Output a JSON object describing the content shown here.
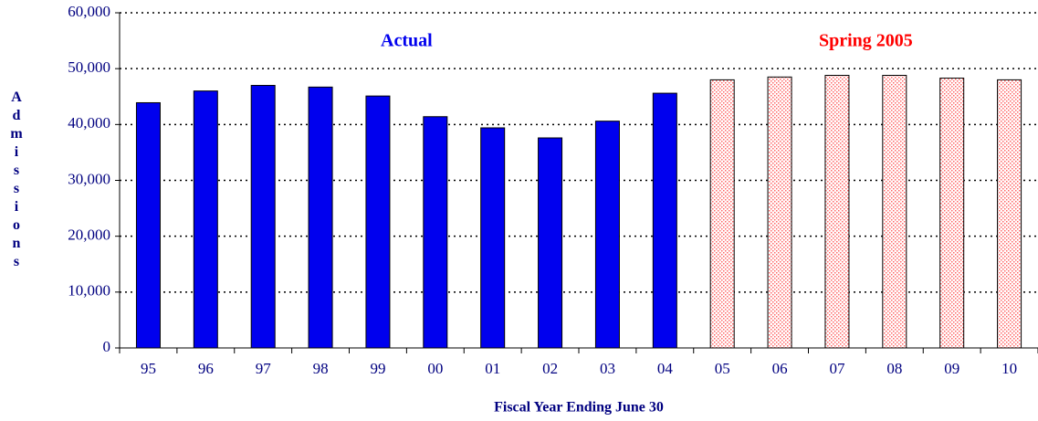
{
  "chart_data": {
    "type": "bar",
    "x_label": "Fiscal Year Ending June 30",
    "y_label": "Admissions",
    "categories": [
      "95",
      "96",
      "97",
      "98",
      "99",
      "00",
      "01",
      "02",
      "03",
      "04",
      "05",
      "06",
      "07",
      "08",
      "09",
      "10"
    ],
    "series": [
      {
        "name": "Actual",
        "color": "#0000ee",
        "pattern": "solid",
        "values": [
          43900,
          46000,
          47000,
          46700,
          45100,
          41400,
          39400,
          37600,
          40600,
          45600,
          null,
          null,
          null,
          null,
          null,
          null
        ]
      },
      {
        "name": "Spring 2005",
        "color": "#ff0000",
        "pattern": "dots",
        "values": [
          null,
          null,
          null,
          null,
          null,
          null,
          null,
          null,
          null,
          null,
          48000,
          48500,
          48800,
          48800,
          48300,
          48000
        ]
      }
    ],
    "ylim": [
      0,
      60000
    ],
    "yticks": [
      0,
      {
        "value": 10000,
        "label": "10,000"
      },
      {
        "value": 20000,
        "label": "20,000"
      },
      {
        "value": 30000,
        "label": "30,000"
      },
      {
        "value": 40000,
        "label": "40,000"
      },
      {
        "value": 50000,
        "label": "50,000"
      },
      {
        "value": 60000,
        "label": "60,000"
      }
    ],
    "grid": true
  }
}
